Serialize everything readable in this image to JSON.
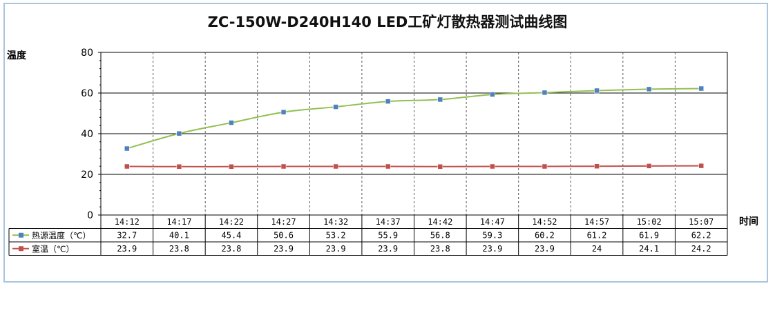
{
  "chart_data": {
    "type": "line",
    "title": "ZC-150W-D240H140 LED工矿灯散热器测试曲线图",
    "ylabel": "温度",
    "xlabel": "时间",
    "ylim": [
      0,
      80
    ],
    "yticks": [
      "0",
      "20",
      "40",
      "60",
      "80"
    ],
    "categories": [
      "14:12",
      "14:17",
      "14:22",
      "14:27",
      "14:32",
      "14:37",
      "14:42",
      "14:47",
      "14:52",
      "14:57",
      "15:02",
      "15:07"
    ],
    "series": [
      {
        "name": "热源温度（℃）",
        "color": "#92c050",
        "marker_color": "#4f81bd",
        "values": [
          32.7,
          40.1,
          45.4,
          50.6,
          53.2,
          55.9,
          56.8,
          59.3,
          60.2,
          61.2,
          61.9,
          62.2
        ]
      },
      {
        "name": "室温（℃）",
        "color": "#c0504d",
        "marker_color": "#c0504d",
        "values": [
          23.9,
          23.8,
          23.8,
          23.9,
          23.9,
          23.9,
          23.8,
          23.9,
          23.9,
          24,
          24.1,
          24.2
        ]
      }
    ],
    "data_table": {
      "rows": [
        [
          "32.7",
          "40.1",
          "45.4",
          "50.6",
          "53.2",
          "55.9",
          "56.8",
          "59.3",
          "60.2",
          "61.2",
          "61.9",
          "62.2"
        ],
        [
          "23.9",
          "23.8",
          "23.8",
          "23.9",
          "23.9",
          "23.9",
          "23.8",
          "23.9",
          "23.9",
          "24",
          "24.1",
          "24.2"
        ]
      ]
    },
    "grid": "horizontal solid major, vertical dashed",
    "legend": "in data table"
  }
}
